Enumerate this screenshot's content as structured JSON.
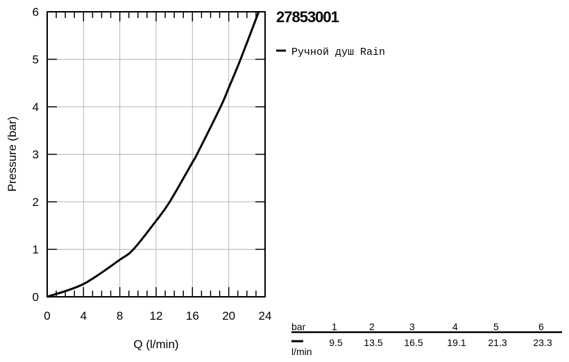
{
  "chart_data": {
    "type": "line",
    "title": "27853001",
    "xlabel": "Q (l/min)",
    "ylabel": "Pressure (bar)",
    "xlim": [
      0,
      24
    ],
    "ylim": [
      0,
      6
    ],
    "x_ticks": [
      "0",
      "4",
      "8",
      "12",
      "16",
      "20",
      "24"
    ],
    "y_ticks": [
      "0",
      "1",
      "2",
      "3",
      "4",
      "5",
      "6"
    ],
    "grid": true,
    "legend_position": "right",
    "series": [
      {
        "name": "Ручной душ Rain",
        "color": "#000000",
        "x": [
          0,
          4,
          8,
          9.5,
          12,
          13.5,
          16,
          16.5,
          19.1,
          20,
          21.3,
          23.3
        ],
        "y": [
          0,
          0.27,
          0.78,
          1,
          1.6,
          2,
          2.83,
          3,
          4,
          4.4,
          5,
          6
        ]
      }
    ]
  },
  "flow_table": {
    "row_label_top": "bar",
    "row_label_bottom": "l/min",
    "columns": [
      {
        "bar": "1",
        "flow": "9.5"
      },
      {
        "bar": "2",
        "flow": "13.5"
      },
      {
        "bar": "3",
        "flow": "16.5"
      },
      {
        "bar": "4",
        "flow": "19.1"
      },
      {
        "bar": "5",
        "flow": "21.3"
      },
      {
        "bar": "6",
        "flow": "23.3"
      }
    ]
  }
}
